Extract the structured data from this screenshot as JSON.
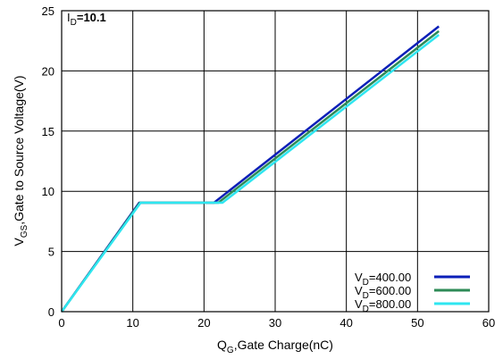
{
  "chart_data": {
    "type": "line",
    "xlabel_main": "Q",
    "xlabel_sub": "G",
    "xlabel_rest": ",Gate Charge(nC)",
    "ylabel_main": "V",
    "ylabel_sub": "GS",
    "ylabel_rest": ",Gate to Source Voltage(V)",
    "xlim": [
      0,
      60
    ],
    "ylim": [
      0,
      25
    ],
    "xticks": [
      0,
      10,
      20,
      30,
      40,
      50,
      60
    ],
    "yticks": [
      0,
      5,
      10,
      15,
      20,
      25
    ],
    "grid": true,
    "legend_placement": "bottom-right",
    "annotation": {
      "main": "I",
      "sub": "D",
      "rest": "=10.1"
    },
    "series": [
      {
        "name_main": "V",
        "name_sub": "D",
        "name_rest": "=400.00",
        "color": "#0b1fb8",
        "points": [
          [
            0,
            0
          ],
          [
            10.9,
            9.05
          ],
          [
            21.4,
            9.05
          ],
          [
            53,
            23.7
          ]
        ]
      },
      {
        "name_main": "V",
        "name_sub": "D",
        "name_rest": "=600.00",
        "color": "#2e8b57",
        "points": [
          [
            0,
            0
          ],
          [
            11.0,
            9.05
          ],
          [
            22.0,
            9.05
          ],
          [
            53,
            23.3
          ]
        ]
      },
      {
        "name_main": "V",
        "name_sub": "D",
        "name_rest": "=800.00",
        "color": "#2ee6f0",
        "points": [
          [
            0,
            0
          ],
          [
            11.1,
            9.05
          ],
          [
            22.6,
            9.05
          ],
          [
            53,
            23.0
          ]
        ]
      }
    ]
  }
}
